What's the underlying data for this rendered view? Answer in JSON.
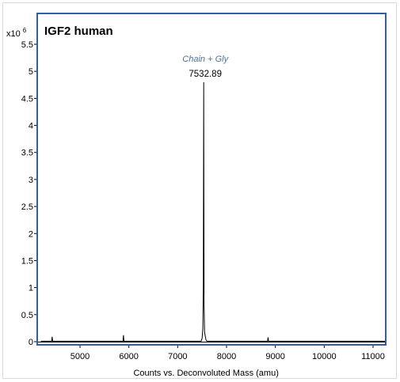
{
  "chart_data": {
    "type": "line",
    "title": "IGF2 human",
    "xlabel": "Counts vs. Deconvoluted Mass (amu)",
    "ylabel": "",
    "y_multiplier": "x10 6",
    "xlim": [
      4200,
      11250
    ],
    "ylim": [
      0,
      5.75
    ],
    "x_ticks": [
      5000,
      6000,
      7000,
      8000,
      9000,
      10000,
      11000
    ],
    "y_ticks": [
      0,
      0.5,
      1,
      1.5,
      2,
      2.5,
      3,
      3.5,
      4,
      4.5,
      5,
      5.5
    ],
    "y_tick_labels": [
      "0",
      "0.5",
      "1",
      "1.5",
      "2",
      "2.5",
      "3",
      "3.5",
      "4",
      "4.5",
      "5",
      "5.5"
    ],
    "colors": {
      "frame": "#2e5fa8",
      "trace": "#000000",
      "annotation": "#4a6fa5"
    },
    "series": [
      {
        "x": [
          4200,
          4420,
          4430,
          4440,
          5880,
          5890,
          5900,
          7480,
          7500,
          7515,
          7525,
          7532.89,
          7540,
          7550,
          7565,
          7580,
          7600,
          8840,
          8850,
          8860,
          11250
        ],
        "values": [
          0.01,
          0.01,
          0.09,
          0.01,
          0.01,
          0.12,
          0.01,
          0.01,
          0.06,
          0.25,
          1.1,
          4.8,
          0.7,
          0.18,
          0.1,
          0.03,
          0.01,
          0.01,
          0.08,
          0.01,
          0.01
        ]
      }
    ],
    "annotations": [
      {
        "name": "Chain + Gly",
        "value": "7532.89",
        "x": 7532.89,
        "y": 4.8
      }
    ]
  }
}
